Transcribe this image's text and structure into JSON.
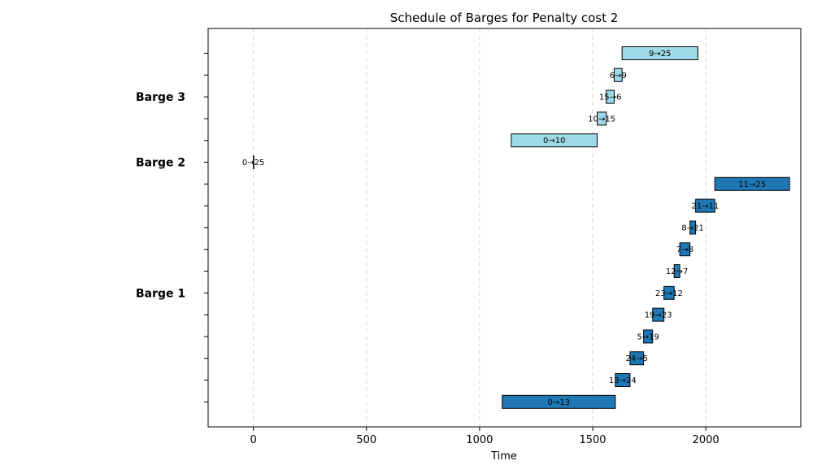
{
  "chart_data": {
    "type": "gantt",
    "title": "Schedule of Barges for Penalty cost 2",
    "xlabel": "Time",
    "ylabel": "",
    "xlim": [
      -200,
      2420
    ],
    "xticks": [
      0,
      500,
      1000,
      1500,
      2000
    ],
    "grid": "x-dashed",
    "colors": {
      "Barge 1": "#1f77b4",
      "Barge 2": "#9dd9e6",
      "Barge 3": "#9dd9e6"
    },
    "groups": [
      {
        "name": "Barge 1",
        "row": 6
      },
      {
        "name": "Barge 2",
        "row": 12
      },
      {
        "name": "Barge 3",
        "row": 15
      }
    ],
    "tasks": [
      {
        "label": "0→13",
        "barge": "Barge 1",
        "row": 1,
        "start": 1100,
        "end": 1600
      },
      {
        "label": "13→24",
        "barge": "Barge 1",
        "row": 2,
        "start": 1600,
        "end": 1665
      },
      {
        "label": "24→5",
        "barge": "Barge 1",
        "row": 3,
        "start": 1665,
        "end": 1725
      },
      {
        "label": "5→19",
        "barge": "Barge 1",
        "row": 4,
        "start": 1725,
        "end": 1765
      },
      {
        "label": "19→23",
        "barge": "Barge 1",
        "row": 5,
        "start": 1765,
        "end": 1815
      },
      {
        "label": "23→12",
        "barge": "Barge 1",
        "row": 6,
        "start": 1815,
        "end": 1860
      },
      {
        "label": "12→7",
        "barge": "Barge 1",
        "row": 7,
        "start": 1860,
        "end": 1885
      },
      {
        "label": "7→8",
        "barge": "Barge 1",
        "row": 8,
        "start": 1885,
        "end": 1930
      },
      {
        "label": "8→21",
        "barge": "Barge 1",
        "row": 9,
        "start": 1930,
        "end": 1955
      },
      {
        "label": "21→11",
        "barge": "Barge 1",
        "row": 10,
        "start": 1955,
        "end": 2040
      },
      {
        "label": "11→25",
        "barge": "Barge 1",
        "row": 11,
        "start": 2040,
        "end": 2370
      },
      {
        "label": "0→25",
        "barge": "Barge 2",
        "row": 12,
        "start": 0,
        "end": 0
      },
      {
        "label": "0→10",
        "barge": "Barge 3",
        "row": 13,
        "start": 1140,
        "end": 1520
      },
      {
        "label": "10→15",
        "barge": "Barge 3",
        "row": 14,
        "start": 1520,
        "end": 1560
      },
      {
        "label": "15→6",
        "barge": "Barge 3",
        "row": 15,
        "start": 1560,
        "end": 1595
      },
      {
        "label": "6→9",
        "barge": "Barge 3",
        "row": 16,
        "start": 1595,
        "end": 1630
      },
      {
        "label": "9→25",
        "barge": "Barge 3",
        "row": 17,
        "start": 1630,
        "end": 1965
      }
    ]
  }
}
